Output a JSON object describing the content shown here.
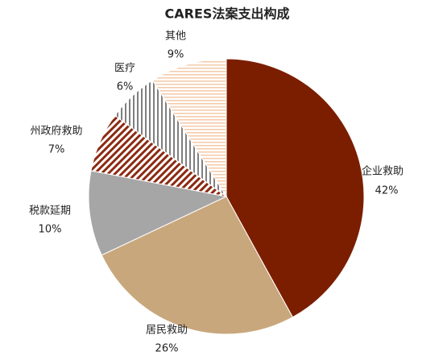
{
  "chart_data": {
    "type": "pie",
    "title": "CARES法案支出构成",
    "categories": [
      "企业救助",
      "居民救助",
      "税款延期",
      "州政府救助",
      "医疗",
      "其他"
    ],
    "values": [
      42,
      26,
      10,
      7,
      6,
      9
    ],
    "value_labels": [
      "42%",
      "26%",
      "10%",
      "7%",
      "6%",
      "9%"
    ],
    "colors": [
      "#7b1e00",
      "#c9a77c",
      "#a6a6a6",
      "#8b2a12",
      "#7f7f7f",
      "#f4c9a8"
    ],
    "patterns": [
      "solid",
      "solid",
      "solid",
      "diagonal",
      "vertical",
      "horizontal"
    ]
  }
}
